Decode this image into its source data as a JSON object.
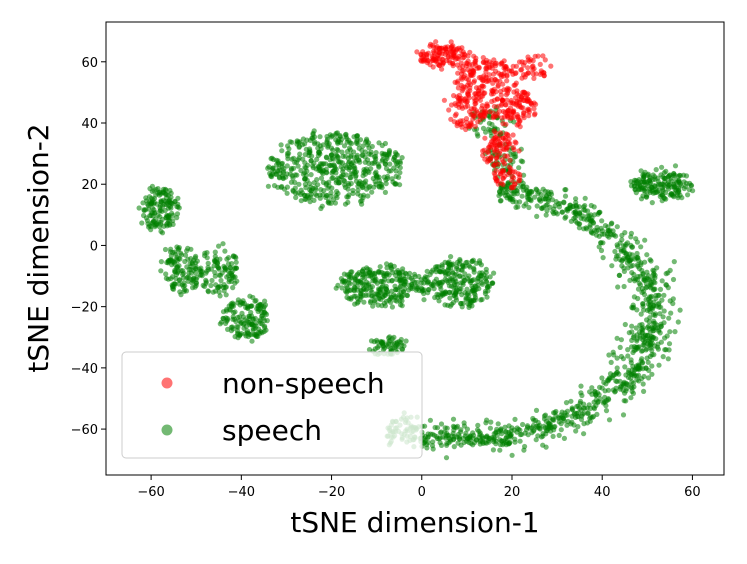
{
  "chart_data": {
    "type": "scatter",
    "xlabel": "tSNE dimension-1",
    "ylabel": "tSNE dimension-2",
    "xlim": [
      -70,
      67
    ],
    "ylim": [
      -75,
      73
    ],
    "x_ticks": [
      -60,
      -40,
      -20,
      0,
      20,
      40,
      60
    ],
    "y_ticks": [
      -60,
      -40,
      -20,
      0,
      20,
      40,
      60
    ],
    "x_tick_labels": [
      "−60",
      "−40",
      "−20",
      "0",
      "20",
      "40",
      "60"
    ],
    "y_tick_labels": [
      "−60",
      "−40",
      "−20",
      "0",
      "20",
      "40",
      "60"
    ],
    "grid": false,
    "legend_position": "lower-left",
    "series": [
      {
        "name": "non-speech",
        "color": "#ff0000",
        "clusters": [
          {
            "kind": "blob",
            "cx": 5,
            "cy": 62,
            "rx": 6,
            "ry": 4,
            "n": 120
          },
          {
            "kind": "blob",
            "cx": 14,
            "cy": 55,
            "rx": 7,
            "ry": 6,
            "n": 150
          },
          {
            "kind": "blob",
            "cx": 20,
            "cy": 45,
            "rx": 5,
            "ry": 6,
            "n": 120
          },
          {
            "kind": "blob",
            "cx": 10,
            "cy": 44,
            "rx": 5,
            "ry": 6,
            "n": 90
          },
          {
            "kind": "blob",
            "cx": 17,
            "cy": 32,
            "rx": 4,
            "ry": 6,
            "n": 80
          },
          {
            "kind": "blob",
            "cx": 19,
            "cy": 22,
            "rx": 3,
            "ry": 3,
            "n": 40
          },
          {
            "kind": "blob",
            "cx": 25,
            "cy": 58,
            "rx": 4,
            "ry": 4,
            "n": 40
          }
        ]
      },
      {
        "name": "speech",
        "color": "#008000",
        "clusters": [
          {
            "kind": "blob",
            "cx": -58,
            "cy": 12,
            "rx": 4,
            "ry": 7,
            "n": 140
          },
          {
            "kind": "blob",
            "cx": -53,
            "cy": -8,
            "rx": 4,
            "ry": 8,
            "n": 120
          },
          {
            "kind": "blob",
            "cx": -45,
            "cy": -8,
            "rx": 4,
            "ry": 8,
            "n": 100
          },
          {
            "kind": "blob",
            "cx": -39,
            "cy": -24,
            "rx": 5,
            "ry": 7,
            "n": 150
          },
          {
            "kind": "blob",
            "cx": -19,
            "cy": 25,
            "rx": 15,
            "ry": 12,
            "n": 500
          },
          {
            "kind": "blob",
            "cx": -9,
            "cy": -13,
            "rx": 9,
            "ry": 7,
            "n": 260
          },
          {
            "kind": "blob",
            "cx": 8,
            "cy": -12,
            "rx": 8,
            "ry": 8,
            "n": 240
          },
          {
            "kind": "blob",
            "cx": -8,
            "cy": -33,
            "rx": 4,
            "ry": 3,
            "n": 60
          },
          {
            "kind": "blob",
            "cx": 53,
            "cy": 20,
            "rx": 7,
            "ry": 5,
            "n": 170
          },
          {
            "kind": "blob",
            "cx": 15,
            "cy": 40,
            "rx": 5,
            "ry": 5,
            "n": 45
          },
          {
            "kind": "blob",
            "cx": 18,
            "cy": 28,
            "rx": 4,
            "ry": 5,
            "n": 50
          },
          {
            "kind": "arc",
            "cx": 10,
            "cy": -22,
            "r": 41,
            "a0": 80,
            "a1": -115,
            "band": 4,
            "n": 1050
          }
        ]
      }
    ]
  }
}
